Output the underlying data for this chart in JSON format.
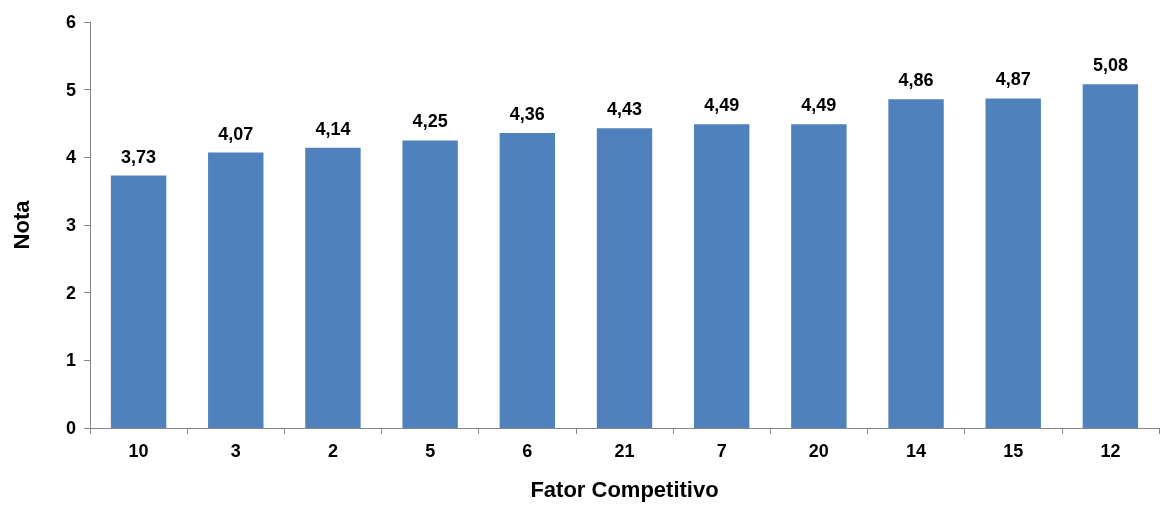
{
  "chart_data": {
    "type": "bar",
    "xlabel": "Fator Competitivo",
    "ylabel": "Nota",
    "categories": [
      "10",
      "3",
      "2",
      "5",
      "6",
      "21",
      "7",
      "20",
      "14",
      "15",
      "12"
    ],
    "values": [
      3.73,
      4.07,
      4.14,
      4.25,
      4.36,
      4.43,
      4.49,
      4.49,
      4.86,
      4.87,
      5.08
    ],
    "value_labels": [
      "3,73",
      "4,07",
      "4,14",
      "4,25",
      "4,36",
      "4,43",
      "4,49",
      "4,49",
      "4,86",
      "4,87",
      "5,08"
    ],
    "color": "#4f81bd",
    "ylim": [
      0,
      6
    ],
    "yticks": [
      0,
      1,
      2,
      3,
      4,
      5,
      6
    ]
  }
}
